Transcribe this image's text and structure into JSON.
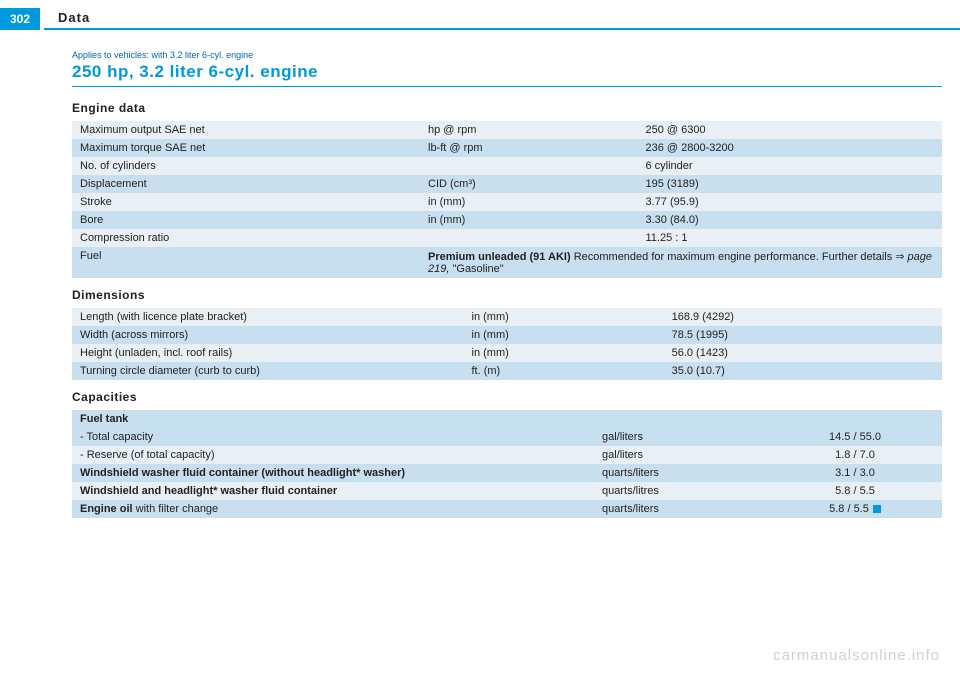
{
  "page_number": "302",
  "header": "Data",
  "applies": "Applies to vehicles: with 3.2 liter 6-cyl. engine",
  "title": "250 hp, 3.2 liter 6-cyl. engine",
  "engine": {
    "heading": "Engine data",
    "rows": [
      {
        "label": "Maximum output SAE net",
        "unit": "hp @ rpm",
        "value": "250 @ 6300",
        "cls": "row-a"
      },
      {
        "label": "Maximum torque SAE net",
        "unit": "lb-ft @ rpm",
        "value": "236 @ 2800-3200",
        "cls": "row-b"
      },
      {
        "label": "No. of cylinders",
        "unit": "",
        "value": "6 cylinder",
        "cls": "row-a"
      },
      {
        "label": "Displacement",
        "unit": "CID (cm³)",
        "value": "195 (3189)",
        "cls": "row-b"
      },
      {
        "label": "Stroke",
        "unit": "in (mm)",
        "value": "3.77 (95.9)",
        "cls": "row-a"
      },
      {
        "label": "Bore",
        "unit": "in (mm)",
        "value": "3.30 (84.0)",
        "cls": "row-b"
      },
      {
        "label": "Compression ratio",
        "unit": "",
        "value": "11.25 : 1",
        "cls": "row-a"
      }
    ],
    "fuel_label": "Fuel",
    "fuel_bold": "Premium unleaded (91 AKI) ",
    "fuel_rest": "Recommended for maximum engine performance. Further details ⇒ ",
    "fuel_page": "page 219,",
    "fuel_tail": " \"Gasoline\""
  },
  "dims": {
    "heading": "Dimensions",
    "rows": [
      {
        "label": "Length (with licence plate bracket)",
        "unit": "in (mm)",
        "value": "168.9 (4292)",
        "cls": "row-a"
      },
      {
        "label": "Width (across mirrors)",
        "unit": "in (mm)",
        "value": "78.5 (1995)",
        "cls": "row-b"
      },
      {
        "label": "Height (unladen, incl. roof rails)",
        "unit": "in (mm)",
        "value": "56.0 (1423)",
        "cls": "row-a"
      },
      {
        "label": "Turning circle diameter (curb to curb)",
        "unit": "ft. (m)",
        "value": "35.0 (10.7)",
        "cls": "row-b"
      }
    ]
  },
  "caps": {
    "heading": "Capacities",
    "rows": [
      {
        "label": "Fuel tank",
        "unit": "",
        "value": "",
        "cls": "row-b",
        "bold": true
      },
      {
        "label": "- Total capacity",
        "unit": "gal/liters",
        "value": "14.5 / 55.0",
        "cls": "row-b",
        "bold": false
      },
      {
        "label": "- Reserve (of total capacity)",
        "unit": "gal/liters",
        "value": "1.8 / 7.0",
        "cls": "row-a",
        "bold": false
      },
      {
        "label": "Windshield washer fluid container (without headlight* washer)",
        "unit": "quarts/liters",
        "value": "3.1 / 3.0",
        "cls": "row-b",
        "bold": true
      },
      {
        "label": "Windshield and headlight* washer fluid container",
        "unit": "quarts/litres",
        "value": "5.8 / 5.5",
        "cls": "row-a",
        "bold": true
      }
    ],
    "oil_label_bold": "Engine oil ",
    "oil_label_rest": "with filter change",
    "oil_unit": "quarts/liters",
    "oil_value": "5.8 / 5.5"
  },
  "watermark": "carmanualsonline.info"
}
